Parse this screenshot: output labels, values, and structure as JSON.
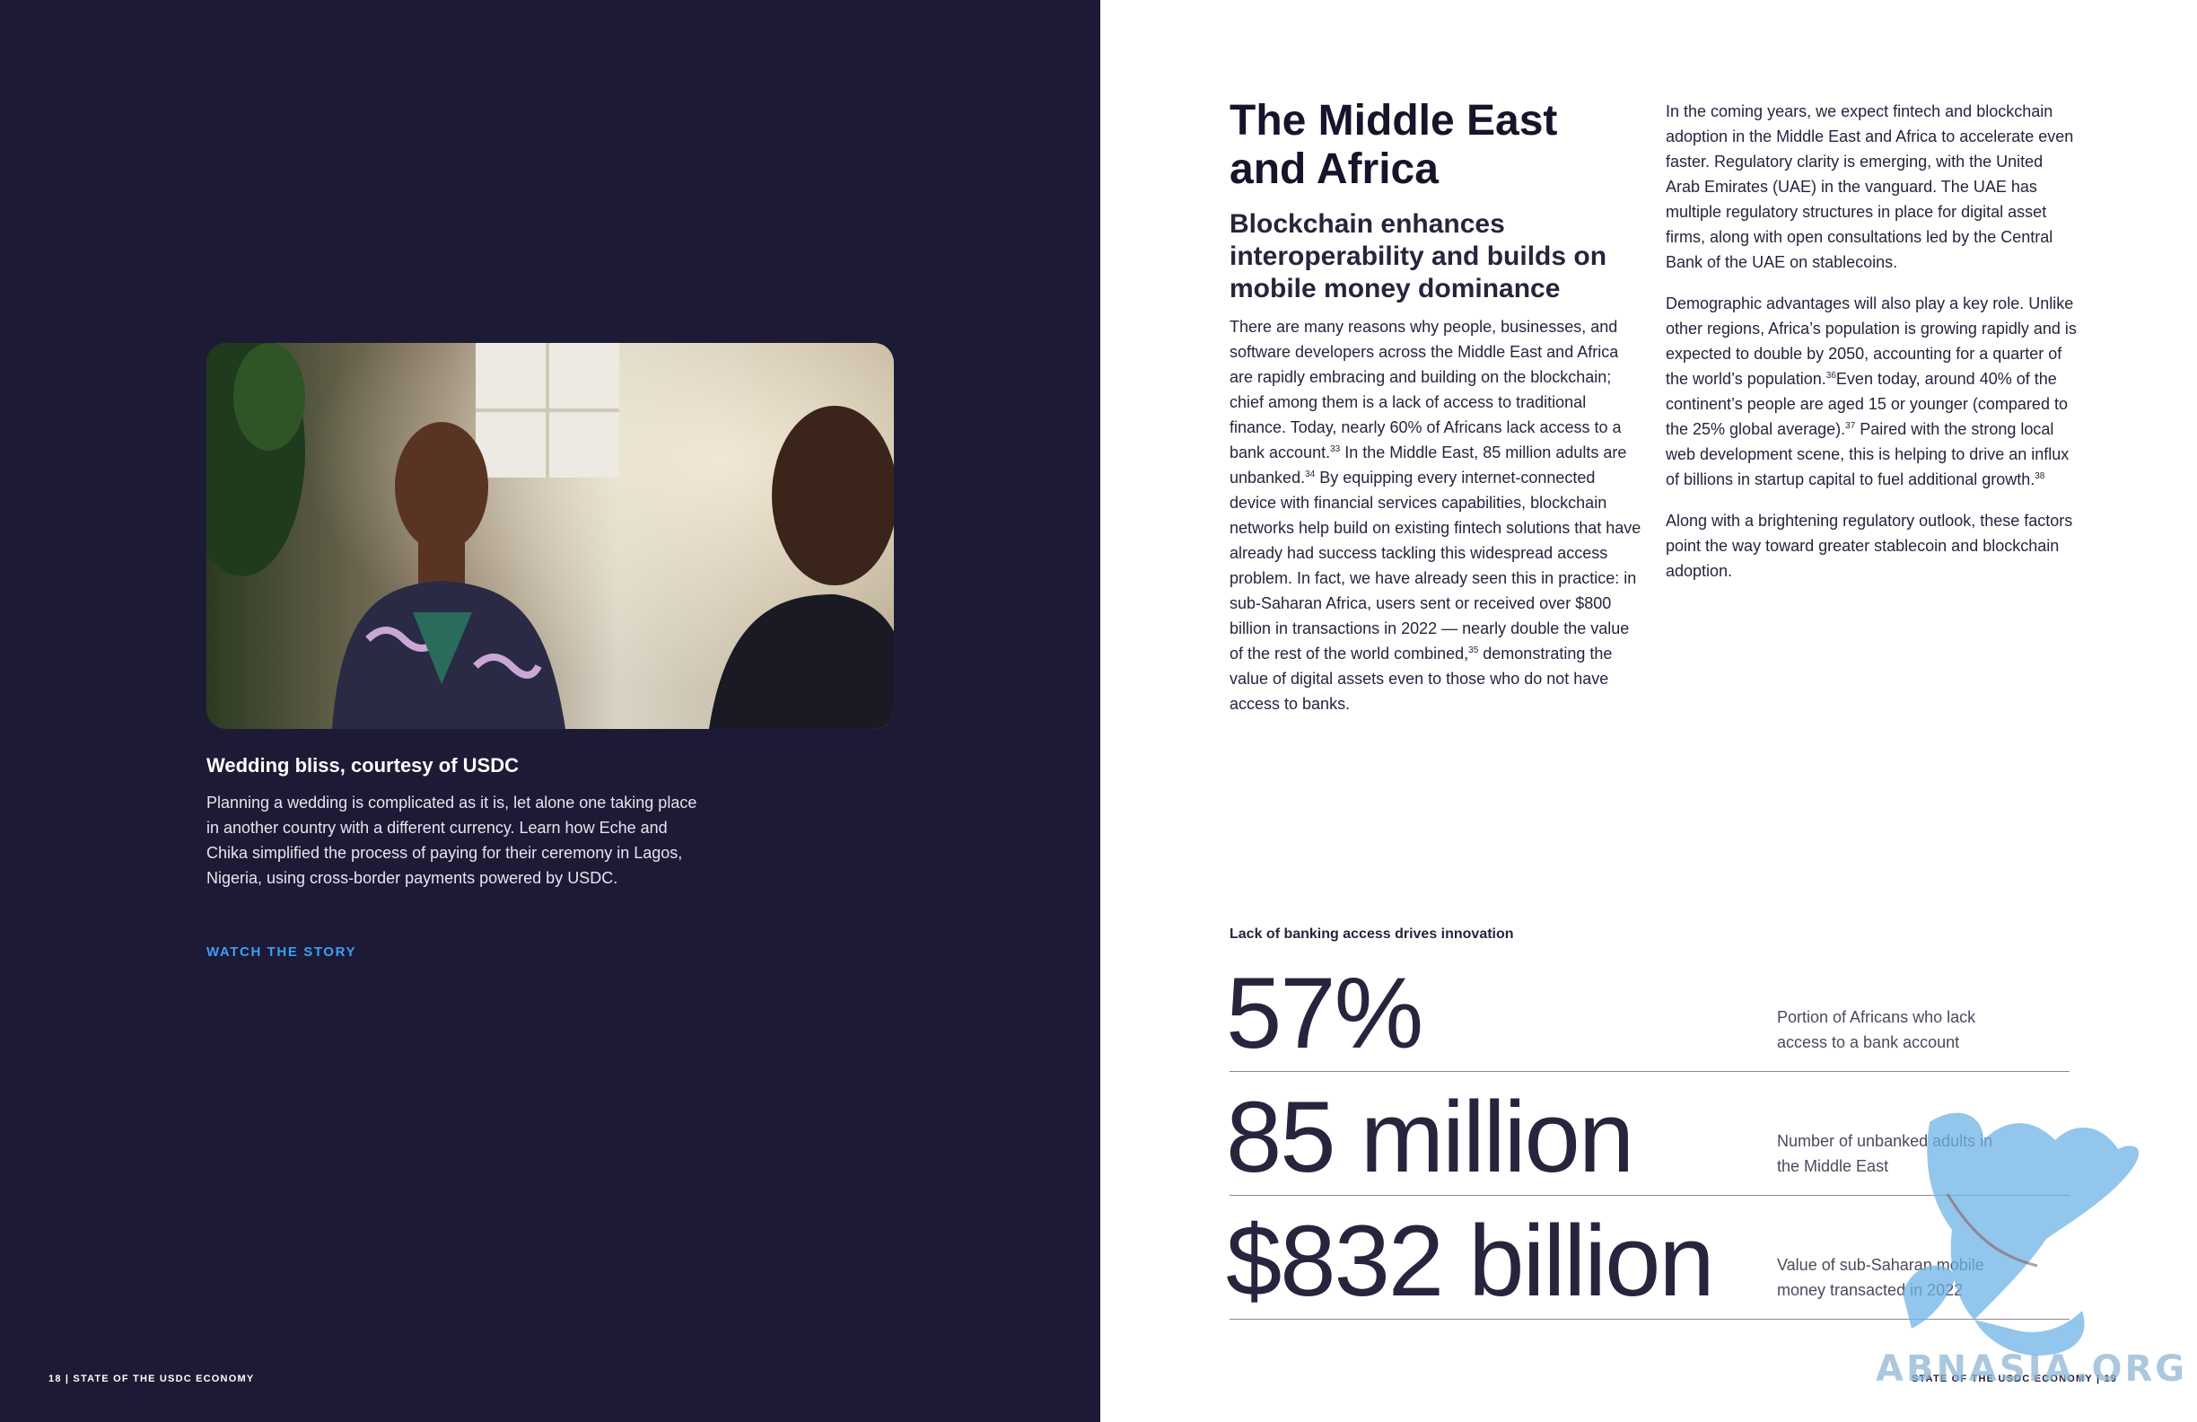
{
  "left_page": {
    "photo": {
      "alt": "Wedding photo"
    },
    "caption_title": "Wedding bliss, courtesy of USDC",
    "caption_body": "Planning a wedding is complicated as it is, let alone one taking place in another country with a different currency. Learn how Eche and Chika simplified the process of paying for their ceremony in Lagos, Nigeria, using cross-border payments powered by USDC.",
    "watch_link": "WATCH THE STORY",
    "footer": "18 | STATE OF THE USDC ECONOMY"
  },
  "right_page": {
    "heading": "The Middle East and Africa",
    "subheading": "Blockchain enhances interoperability and builds on mobile money dominance",
    "col1": {
      "t1": "There are many reasons why people, businesses, and software developers across the Middle East and Africa are rapidly embracing and building on the blockchain; chief among them is a lack of access to traditional finance. Today, nearly 60% of Africans lack access to a bank account.",
      "n1": "33",
      "t2": " In the Middle East, 85 million adults are unbanked.",
      "n2": "34",
      "t3": " By equipping every internet-connected device with financial services capabilities, blockchain networks help build on existing fintech solutions that have already had success tackling this widespread access problem. In fact, we have already seen this in practice: in sub-Saharan Africa, users sent or received over $800 billion in transactions in 2022 — nearly double the value of the rest of the world combined,",
      "n3": "35",
      "t4": " demonstrating the value of digital assets even to those who do not have access to banks."
    },
    "col2": {
      "p1": "In the coming years, we expect fintech and blockchain adoption in the Middle East and Africa to accelerate even faster. Regulatory clarity is emerging, with the United Arab Emirates (UAE) in the vanguard. The UAE has multiple regulatory structures in place for digital asset firms, along with open consultations led by the Central Bank of the UAE on stablecoins.",
      "p2_t1": "Demographic advantages will also play a key role. Unlike other regions, Africa’s population is growing rapidly and is expected to double by 2050, accounting for a quarter of the world’s population.",
      "p2_n1": "36",
      "p2_t2": "Even today, around 40% of the continent’s people are aged 15 or younger (compared to the 25% global average).",
      "p2_n2": "37",
      "p2_t3": " Paired with the strong local web development scene, this is helping to drive an influx of billions in startup capital to fuel additional growth.",
      "p2_n3": "38",
      "p3": "Along with a brightening regulatory outlook, these factors point the way toward greater stablecoin and blockchain adoption."
    },
    "stats": {
      "title": "Lack of banking access drives innovation",
      "items": [
        {
          "value": "57%",
          "label": "Portion of Africans who lack access to a bank account"
        },
        {
          "value": "85 million",
          "label": "Number of unbanked adults in the Middle East"
        },
        {
          "value": "$832 billion",
          "label": "Value of sub-Saharan mobile money transacted in 2022"
        }
      ]
    },
    "footer": "STATE OF THE USDC ECONOMY   |   19"
  },
  "watermark": {
    "text": "ABNASIA.ORG",
    "icon": "griffin-icon"
  },
  "colors": {
    "left_bg": "#1d1a35",
    "link": "#3d9ef5",
    "text_dark": "#26253d",
    "watermark": "#6fb3e6"
  }
}
